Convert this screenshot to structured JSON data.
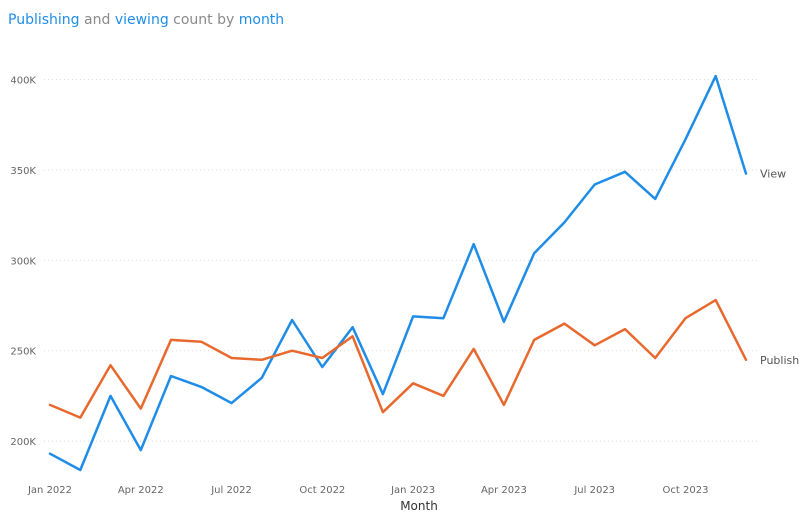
{
  "title": {
    "w1": "Publishing",
    "w2": "and",
    "w3": "viewing",
    "w4": "count by",
    "w5": "month"
  },
  "chart_data": {
    "type": "line",
    "title": "Publishing and viewing count by month",
    "xlabel": "Month",
    "ylabel": "",
    "x": [
      "Jan 2022",
      "Feb 2022",
      "Mar 2022",
      "Apr 2022",
      "May 2022",
      "Jun 2022",
      "Jul 2022",
      "Aug 2022",
      "Sep 2022",
      "Oct 2022",
      "Nov 2022",
      "Dec 2022",
      "Jan 2023",
      "Feb 2023",
      "Mar 2023",
      "Apr 2023",
      "May 2023",
      "Jun 2023",
      "Jul 2023",
      "Aug 2023",
      "Sep 2023",
      "Oct 2023",
      "Nov 2023",
      "Dec 2023"
    ],
    "x_tick_labels": [
      "Jan 2022",
      "Apr 2022",
      "Jul 2022",
      "Oct 2022",
      "Jan 2023",
      "Apr 2023",
      "Jul 2023",
      "Oct 2023"
    ],
    "y_tick_labels": [
      "200K",
      "250K",
      "300K",
      "350K",
      "400K"
    ],
    "y_ticks": [
      200000,
      250000,
      300000,
      350000,
      400000
    ],
    "ylim": [
      184000,
      412000
    ],
    "grid": true,
    "series": [
      {
        "name": "View",
        "color": "#1f8de8",
        "values": [
          193000,
          184000,
          225000,
          195000,
          236000,
          230000,
          221000,
          235000,
          267000,
          241000,
          263000,
          226000,
          269000,
          268000,
          309000,
          266000,
          304000,
          321000,
          342000,
          349000,
          334000,
          367000,
          402000,
          348000
        ]
      },
      {
        "name": "Publish",
        "color": "#e8692e",
        "values": [
          220000,
          213000,
          242000,
          218000,
          256000,
          255000,
          246000,
          245000,
          250000,
          246000,
          258000,
          216000,
          232000,
          225000,
          251000,
          220000,
          256000,
          265000,
          253000,
          262000,
          246000,
          268000,
          278000,
          245000
        ]
      }
    ]
  }
}
